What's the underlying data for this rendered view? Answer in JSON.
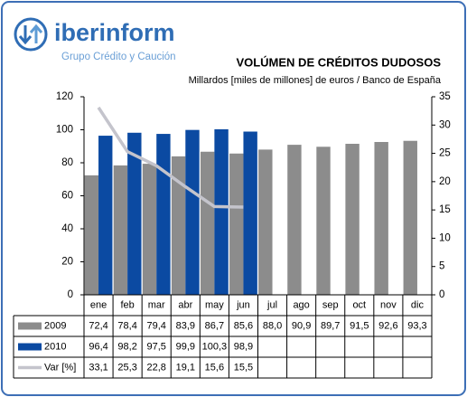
{
  "logo": {
    "name": "iberinform",
    "tagline": "Grupo Crédito y Caución"
  },
  "chart_data": {
    "type": "bar",
    "title": "VOLÚMEN DE CRÉDITOS DUDOSOS",
    "subtitle": "Millardos [miles de millones] de euros / Banco de España",
    "categories": [
      "ene",
      "feb",
      "mar",
      "abr",
      "may",
      "jun",
      "jul",
      "ago",
      "sep",
      "oct",
      "nov",
      "dic"
    ],
    "series": [
      {
        "name": "2009",
        "color": "#8c8c8c",
        "values": [
          72.4,
          78.4,
          79.4,
          83.9,
          86.7,
          85.6,
          88.0,
          90.9,
          89.7,
          91.5,
          92.6,
          93.3
        ],
        "value_labels": [
          "72,4",
          "78,4",
          "79,4",
          "83,9",
          "86,7",
          "85,6",
          "88,0",
          "90,9",
          "89,7",
          "91,5",
          "92,6",
          "93,3"
        ]
      },
      {
        "name": "2010",
        "color": "#0b4aa2",
        "values": [
          96.4,
          98.2,
          97.5,
          99.9,
          100.3,
          98.9,
          null,
          null,
          null,
          null,
          null,
          null
        ],
        "value_labels": [
          "96,4",
          "98,2",
          "97,5",
          "99,9",
          "100,3",
          "98,9",
          null,
          null,
          null,
          null,
          null,
          null
        ]
      },
      {
        "name": "Var [%]",
        "type": "line",
        "axis": "y2",
        "color": "#c4c4cc",
        "values": [
          33.1,
          25.3,
          22.8,
          19.1,
          15.6,
          15.5,
          null,
          null,
          null,
          null,
          null,
          null
        ],
        "value_labels": [
          "33,1",
          "25,3",
          "22,8",
          "19,1",
          "15,6",
          "15,5",
          null,
          null,
          null,
          null,
          null,
          null
        ]
      }
    ],
    "ylim": [
      0,
      120
    ],
    "yticks": [
      0,
      20,
      40,
      60,
      80,
      100,
      120
    ],
    "y2lim": [
      0,
      35
    ],
    "y2ticks": [
      0,
      5,
      10,
      15,
      20,
      25,
      30,
      35
    ],
    "grid": false
  }
}
